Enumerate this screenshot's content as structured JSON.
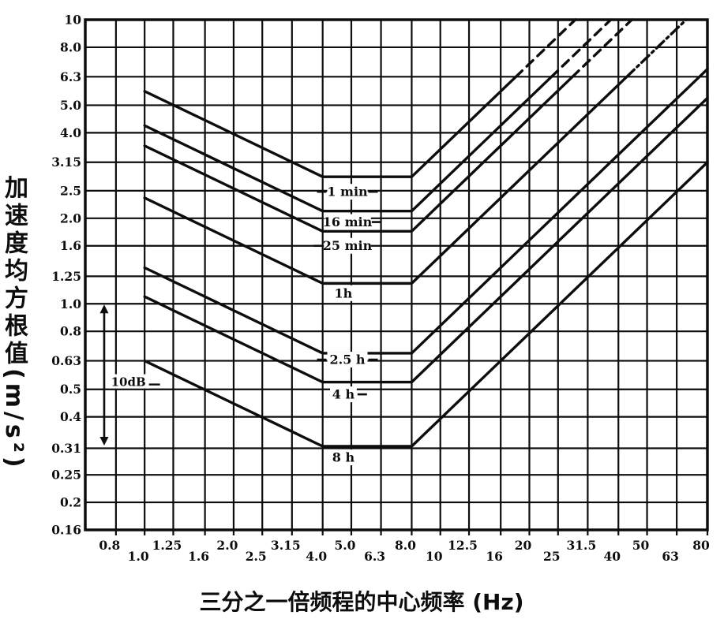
{
  "page": {
    "background": "#ffffff",
    "ink": "#0d0d0d"
  },
  "chart_data": {
    "type": "line",
    "title": "",
    "xlabel": "三分之一倍频程的中心频率 (Hz)",
    "ylabel": "加速度均方根值(m/s²)",
    "x_scale": "log",
    "y_scale": "log",
    "xlim": [
      0.63,
      80
    ],
    "ylim": [
      0.16,
      10
    ],
    "grid": true,
    "legend_position": "on-curve",
    "x_ticks": [
      "0.8",
      "1.0",
      "1.25",
      "1.6",
      "2.0",
      "2.5",
      "3.15",
      "4.0",
      "5.0",
      "6.3",
      "8.0",
      "10",
      "12.5",
      "16",
      "20",
      "25",
      "31.5",
      "40",
      "50",
      "63",
      "80"
    ],
    "y_ticks": [
      "10",
      "8.0",
      "6.3",
      "5.0",
      "4.0",
      "3.15",
      "2.5",
      "2.0",
      "1.6",
      "1.25",
      "1.0",
      "0.8",
      "0.63",
      "0.5",
      "0.4",
      "0.31",
      "0.25",
      "0.2",
      "0.16"
    ],
    "series": [
      {
        "name": "1 min",
        "flat_value_ms2": 2.8,
        "points": [
          [
            1,
            5.6
          ],
          [
            4,
            2.8
          ],
          [
            8,
            2.8
          ],
          [
            28.6,
            10
          ]
        ],
        "dashed_above": 6.3,
        "dash_style": "dash",
        "label_at": [
          4.85,
          2.48
        ],
        "label_flanks": "both"
      },
      {
        "name": "16 min",
        "flat_value_ms2": 2.12,
        "points": [
          [
            1,
            4.24
          ],
          [
            4,
            2.12
          ],
          [
            8,
            2.12
          ],
          [
            37.7,
            10
          ]
        ],
        "dashed_above": 6.3,
        "dash_style": "dash",
        "label_at": [
          4.85,
          1.94
        ],
        "label_flanks": "right"
      },
      {
        "name": "25 min",
        "flat_value_ms2": 1.8,
        "points": [
          [
            1,
            3.6
          ],
          [
            4,
            1.8
          ],
          [
            8,
            1.8
          ],
          [
            44.4,
            10
          ]
        ],
        "dashed_above": 6.3,
        "dash_style": "dash",
        "label_at": [
          4.85,
          1.6
        ],
        "label_flanks": "left"
      },
      {
        "name": "1h",
        "flat_value_ms2": 1.18,
        "points": [
          [
            1,
            2.36
          ],
          [
            4,
            1.18
          ],
          [
            8,
            1.18
          ],
          [
            67.8,
            10
          ]
        ],
        "dashed_above": 6.3,
        "dash_style": "dashdot",
        "label_at": [
          4.7,
          1.09
        ],
        "label_flanks": "none"
      },
      {
        "name": "2.5 h",
        "flat_value_ms2": 0.67,
        "points": [
          [
            1,
            1.34
          ],
          [
            4,
            0.67
          ],
          [
            8,
            0.67
          ],
          [
            80,
            6.7
          ]
        ],
        "label_at": [
          4.85,
          0.636
        ],
        "label_flanks": "both"
      },
      {
        "name": "4 h",
        "flat_value_ms2": 0.53,
        "points": [
          [
            1,
            1.06
          ],
          [
            4,
            0.53
          ],
          [
            8,
            0.53
          ],
          [
            80,
            5.3
          ]
        ],
        "label_at": [
          4.7,
          0.48
        ],
        "label_flanks": "right"
      },
      {
        "name": "8 h",
        "flat_value_ms2": 0.315,
        "points": [
          [
            1,
            0.63
          ],
          [
            4,
            0.315
          ],
          [
            8,
            0.315
          ],
          [
            80,
            3.15
          ]
        ],
        "label_at": [
          4.7,
          0.288
        ],
        "label_flanks": "none"
      }
    ],
    "annotation": {
      "text": "10dB",
      "arrow_hz": 0.73,
      "arrow_from_ms2": 1.0,
      "arrow_to_ms2": 0.315,
      "label_at": [
        0.77,
        0.53
      ]
    }
  }
}
